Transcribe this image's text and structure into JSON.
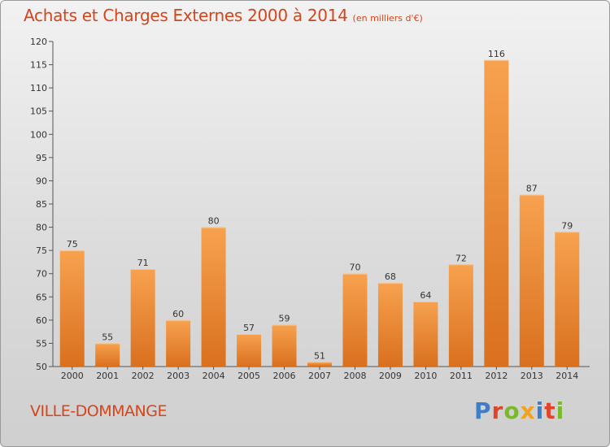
{
  "header": {
    "title": "Achats et Charges Externes 2000 à 2014",
    "subtitle": "(en milliers d'€)"
  },
  "footer": {
    "town": "VILLE-DOMMANGE",
    "brand": "Proxiti",
    "brand_colors": [
      "#3d7ec9",
      "#e0442a",
      "#7bb82a",
      "#f0a31c",
      "#3d7ec9",
      "#e0442a",
      "#7bb82a"
    ]
  },
  "colors": {
    "bar_light": "#f7a24f",
    "bar_dark": "#d9701e",
    "text": "#333333",
    "axis": "#555555",
    "grid": "#bdbdbd"
  },
  "chart_data": {
    "type": "bar",
    "title": "Achats et Charges Externes 2000 à 2014",
    "subtitle": "(en milliers d'€)",
    "categories": [
      "2000",
      "2001",
      "2002",
      "2003",
      "2004",
      "2005",
      "2006",
      "2007",
      "2008",
      "2009",
      "2010",
      "2011",
      "2012",
      "2013",
      "2014"
    ],
    "values": [
      75,
      55,
      71,
      60,
      80,
      57,
      59,
      51,
      70,
      68,
      64,
      72,
      116,
      87,
      79
    ],
    "xlabel": "",
    "ylabel": "",
    "ylim": [
      50,
      120
    ],
    "yticks": [
      50,
      55,
      60,
      65,
      70,
      75,
      80,
      85,
      90,
      95,
      100,
      105,
      110,
      115,
      120
    ],
    "grid": false,
    "legend": "none",
    "data_labels": true
  }
}
